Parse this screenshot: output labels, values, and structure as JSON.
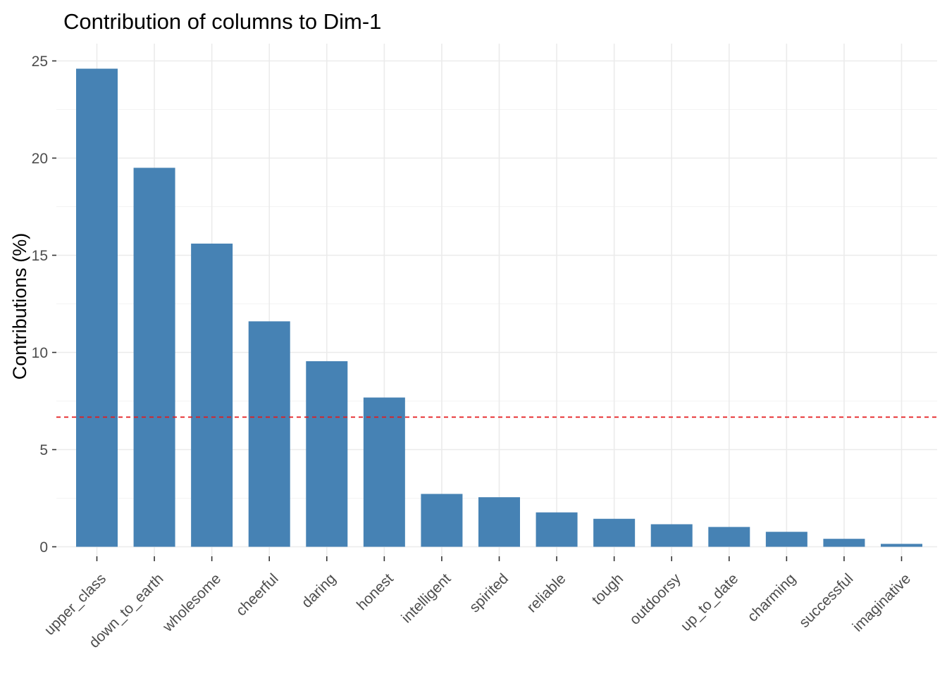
{
  "chart_data": {
    "type": "bar",
    "title": "Contribution of columns to Dim-1",
    "xlabel": "",
    "ylabel": "Contributions (%)",
    "categories": [
      "upper_class",
      "down_to_earth",
      "wholesome",
      "cheerful",
      "daring",
      "honest",
      "intelligent",
      "spirited",
      "reliable",
      "tough",
      "outdoorsy",
      "up_to_date",
      "charming",
      "successful",
      "imaginative"
    ],
    "values": [
      24.6,
      19.5,
      15.6,
      11.6,
      9.55,
      7.68,
      2.72,
      2.55,
      1.77,
      1.44,
      1.16,
      1.02,
      0.77,
      0.41,
      0.15
    ],
    "yticks": [
      0,
      5,
      10,
      15,
      20,
      25
    ],
    "ylim": [
      -0.2,
      26.2
    ],
    "reference_line": {
      "value": 6.67,
      "color": "#e41a1c",
      "style": "dashed"
    },
    "bar_color": "#4682b4",
    "grid": true,
    "legend": "none"
  }
}
